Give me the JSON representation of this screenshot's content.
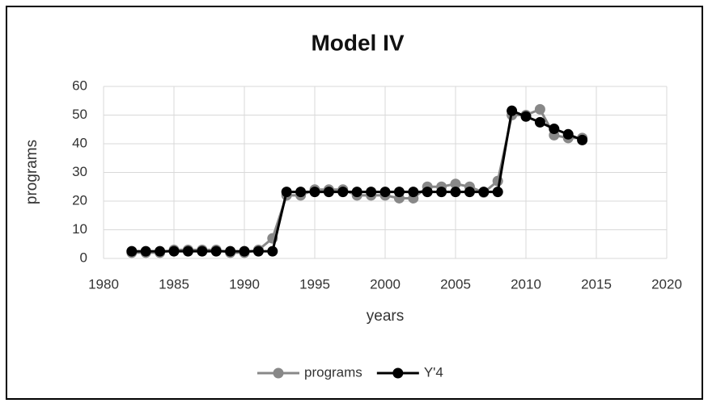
{
  "chart_data": {
    "type": "line",
    "title": "Model IV",
    "x_label": "years",
    "y_label": "programs",
    "x": [
      1982,
      1983,
      1984,
      1985,
      1986,
      1987,
      1988,
      1989,
      1990,
      1991,
      1992,
      1993,
      1994,
      1995,
      1996,
      1997,
      1998,
      1999,
      2000,
      2001,
      2002,
      2003,
      2004,
      2005,
      2006,
      2007,
      2008,
      2009,
      2010,
      2011,
      2012,
      2013,
      2014
    ],
    "series": [
      {
        "name": "programs",
        "color": "#888888",
        "values": [
          2,
          2,
          2,
          3,
          3,
          3,
          3,
          2,
          2,
          3,
          7,
          22,
          22,
          24,
          24,
          24,
          22,
          22,
          22,
          21,
          21,
          25,
          25,
          26,
          25,
          23,
          27,
          50,
          50,
          52,
          43,
          42,
          42
        ]
      },
      {
        "name": "Y'4",
        "color": "#000000",
        "values": [
          2.5,
          2.5,
          2.5,
          2.5,
          2.5,
          2.5,
          2.5,
          2.5,
          2.5,
          2.5,
          2.5,
          23.2,
          23.2,
          23.2,
          23.2,
          23.2,
          23.2,
          23.2,
          23.2,
          23.2,
          23.2,
          23.2,
          23.2,
          23.2,
          23.2,
          23.2,
          23.2,
          51.5,
          49.5,
          47.5,
          45.2,
          43.3,
          41.3
        ]
      }
    ],
    "xlim": [
      1980,
      2020
    ],
    "xticks": [
      1980,
      1985,
      1990,
      1995,
      2000,
      2005,
      2010,
      2015,
      2020
    ],
    "ylim": [
      0,
      60
    ],
    "yticks": [
      0,
      10,
      20,
      30,
      40,
      50,
      60
    ],
    "grid": true,
    "legend": "bottom"
  }
}
